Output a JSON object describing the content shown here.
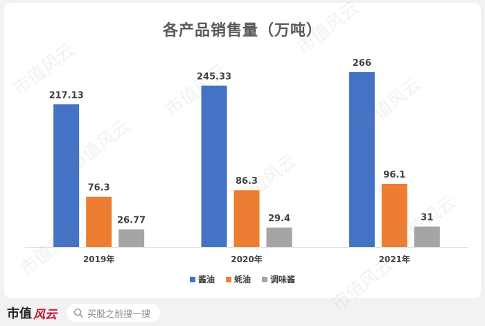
{
  "chart_data": {
    "type": "bar",
    "title": "各产品销售量（万吨）",
    "categories": [
      "2019年",
      "2020年",
      "2021年"
    ],
    "series": [
      {
        "name": "酱油",
        "color": "#4472c4",
        "values": [
          217.13,
          245.33,
          266
        ]
      },
      {
        "name": "蚝油",
        "color": "#ed7d31",
        "values": [
          76.3,
          86.3,
          96.1
        ]
      },
      {
        "name": "调味酱",
        "color": "#a5a5a5",
        "values": [
          26.77,
          29.4,
          31
        ]
      }
    ],
    "ylim": [
      0,
      285
    ],
    "grid": false,
    "legend_position": "bottom"
  },
  "footer": {
    "brand_text": "市值",
    "search_placeholder": "买股之前搜一搜"
  },
  "watermark_text": "市值风云",
  "colors": {
    "background": "#f2f2f2",
    "card": "#ffffff",
    "axis": "#d9d9d9"
  }
}
